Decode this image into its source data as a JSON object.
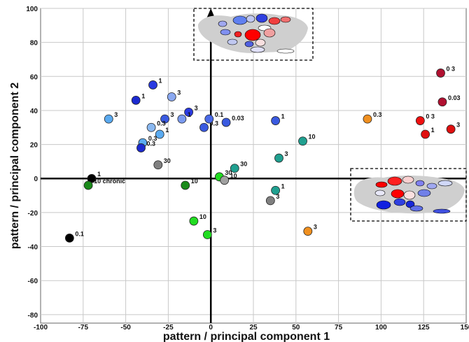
{
  "chart_data": {
    "type": "scatter",
    "xlabel": "pattern / principal component 1",
    "ylabel": "pattern / principal component 2",
    "xlim": [
      -100,
      150
    ],
    "ylim": [
      -85,
      100
    ],
    "x_ticks": [
      -100,
      -75,
      -50,
      -25,
      0,
      25,
      50,
      75,
      100,
      125,
      150
    ],
    "y_ticks": [
      -80,
      -60,
      -40,
      -20,
      0,
      20,
      40,
      60,
      80,
      100
    ],
    "grid": true,
    "points": [
      {
        "x": -83,
        "y": -35,
        "label": "0.1",
        "color": "#000000"
      },
      {
        "x": -70,
        "y": 0,
        "label": "1",
        "color": "#000000"
      },
      {
        "x": -72,
        "y": -4,
        "label": "10 chronic",
        "color": "#1a8a1a"
      },
      {
        "x": -60,
        "y": 35,
        "label": "3",
        "color": "#5aaaf0"
      },
      {
        "x": -44,
        "y": 46,
        "label": "1",
        "color": "#1c2ad0"
      },
      {
        "x": -34,
        "y": 55,
        "label": "1",
        "color": "#2a3ae0"
      },
      {
        "x": -23,
        "y": 48,
        "label": "3",
        "color": "#8aa8f0"
      },
      {
        "x": -27,
        "y": 35,
        "label": "3",
        "color": "#3a5ae0"
      },
      {
        "x": -13,
        "y": 39,
        "label": "3",
        "color": "#2a3ae0"
      },
      {
        "x": -35,
        "y": 30,
        "label": "0.3",
        "color": "#8ab8f0"
      },
      {
        "x": -30,
        "y": 26,
        "label": "1",
        "color": "#5aaaf0"
      },
      {
        "x": -17,
        "y": 35,
        "label": "1",
        "color": "#7a9af0"
      },
      {
        "x": -40,
        "y": 21,
        "label": "0.3",
        "color": "#5aaaf0"
      },
      {
        "x": -41,
        "y": 18,
        "label": "0.3",
        "color": "#1c2ad0"
      },
      {
        "x": -4,
        "y": 30,
        "label": "0.3",
        "color": "#3a5ae0"
      },
      {
        "x": -1,
        "y": 35,
        "label": "0.1",
        "color": "#4a6ae8"
      },
      {
        "x": 9,
        "y": 33,
        "label": "0.03",
        "color": "#3a5ae0"
      },
      {
        "x": 38,
        "y": 34,
        "label": "1",
        "color": "#3a5ae0"
      },
      {
        "x": -31,
        "y": 8,
        "label": "30",
        "color": "#808080"
      },
      {
        "x": -15,
        "y": -4,
        "label": "10",
        "color": "#1a8a1a"
      },
      {
        "x": 5,
        "y": 1,
        "label": "30",
        "color": "#22dd22"
      },
      {
        "x": 8,
        "y": -1,
        "label": "10",
        "color": "#a0a0a0"
      },
      {
        "x": 14,
        "y": 6,
        "label": "30",
        "color": "#20a090"
      },
      {
        "x": 40,
        "y": 12,
        "label": "3",
        "color": "#20a090"
      },
      {
        "x": 54,
        "y": 22,
        "label": "10",
        "color": "#20a090"
      },
      {
        "x": 38,
        "y": -7,
        "label": "1",
        "color": "#20a090"
      },
      {
        "x": 35,
        "y": -13,
        "label": "3",
        "color": "#808080"
      },
      {
        "x": -10,
        "y": -25,
        "label": "10",
        "color": "#22dd22"
      },
      {
        "x": -2,
        "y": -33,
        "label": "3",
        "color": "#22dd22"
      },
      {
        "x": 57,
        "y": -31,
        "label": "3",
        "color": "#f09020"
      },
      {
        "x": 92,
        "y": 35,
        "label": "0.3",
        "color": "#f09020"
      },
      {
        "x": 123,
        "y": 34,
        "label": "0 3",
        "color": "#f01010"
      },
      {
        "x": 126,
        "y": 26,
        "label": "1",
        "color": "#e01010"
      },
      {
        "x": 141,
        "y": 29,
        "label": "3",
        "color": "#e01010"
      },
      {
        "x": 135,
        "y": 62,
        "label": "0 3",
        "color": "#b01030"
      },
      {
        "x": 136,
        "y": 45,
        "label": "0.03",
        "color": "#b01030"
      }
    ]
  }
}
